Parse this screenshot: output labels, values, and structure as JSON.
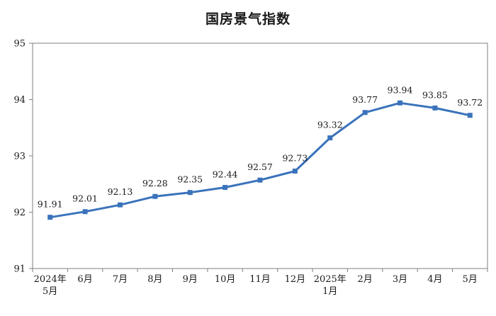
{
  "chart_data": {
    "type": "line",
    "title": "国房景气指数",
    "categories": [
      [
        "2024年",
        "5月"
      ],
      [
        "6月"
      ],
      [
        "7月"
      ],
      [
        "8月"
      ],
      [
        "9月"
      ],
      [
        "10月"
      ],
      [
        "11月"
      ],
      [
        "12月"
      ],
      [
        "2025年",
        "1月"
      ],
      [
        "2月"
      ],
      [
        "3月"
      ],
      [
        "4月"
      ],
      [
        "5月"
      ]
    ],
    "series": [
      {
        "values": [
          91.91,
          92.01,
          92.13,
          92.28,
          92.35,
          92.44,
          92.57,
          92.73,
          93.32,
          93.77,
          93.94,
          93.85,
          93.72
        ],
        "labels": [
          "91.91",
          "92.01",
          "92.13",
          "92.28",
          "92.35",
          "92.44",
          "92.57",
          "92.73",
          "93.32",
          "93.77",
          "93.94",
          "93.85",
          "93.72"
        ],
        "color": "#3a73bb",
        "marker": "square"
      }
    ],
    "ylim": [
      91,
      95
    ],
    "yticks": [
      91,
      92,
      93,
      94,
      95
    ],
    "xlabel": "",
    "ylabel": "",
    "grid": false,
    "legend": "none",
    "axis_color": "#7f7f7f",
    "frame": "box"
  }
}
